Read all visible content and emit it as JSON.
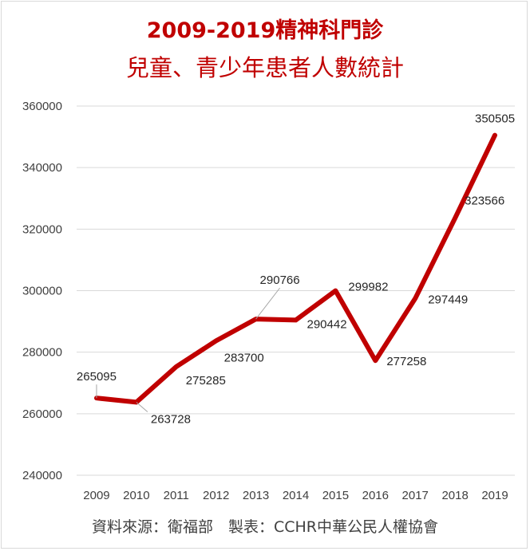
{
  "chart_data": {
    "type": "line",
    "title": "2009-2019精神科門診",
    "subtitle": "兒童、青少年患者人數統計",
    "xlabel": "",
    "ylabel": "",
    "categories": [
      "2009",
      "2010",
      "2011",
      "2012",
      "2013",
      "2014",
      "2015",
      "2016",
      "2017",
      "2018",
      "2019"
    ],
    "series": [
      {
        "values": [
          265095,
          263728,
          275285,
          283700,
          290766,
          290442,
          299982,
          277258,
          297449,
          323566,
          350505
        ]
      }
    ],
    "data_labels": [
      "265095",
      "263728",
      "275285",
      "283700",
      "290766",
      "290442",
      "299982",
      "277258",
      "297449",
      "323566",
      "350505"
    ],
    "ylim": [
      240000,
      360000
    ],
    "yticks": [
      "240000",
      "260000",
      "280000",
      "300000",
      "320000",
      "340000",
      "360000"
    ],
    "grid": true,
    "legend": "none",
    "line_color": "#c00000",
    "source_note": "資料來源：衛福部　製表：CCHR中華公民人權協會"
  }
}
